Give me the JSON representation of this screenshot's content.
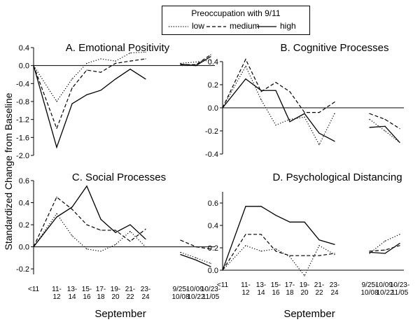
{
  "legend": {
    "title": "Preoccupation with 9/11",
    "items": [
      "low",
      "medium",
      "high"
    ]
  },
  "ylabel": "Standardized Change from Baseline",
  "xlabel": "September",
  "x_categories": [
    "<11",
    "11-\n12",
    "13-\n14",
    "15-\n16",
    "17-\n18",
    "19-\n20",
    "21-\n22",
    "23-\n24",
    "9/25-\n10/08",
    "10/09-\n10/22",
    "10/23-\n11/05"
  ],
  "chart_data": [
    {
      "type": "line",
      "title": "A. Emotional Positivity",
      "ylim": [
        -2.0,
        0.4
      ],
      "yticks": [
        "0.4",
        "0.0",
        "-0.4",
        "-0.8",
        "-1.2",
        "-1.6",
        "-2.0"
      ],
      "ytick_values": [
        0.4,
        0.0,
        -0.4,
        -0.8,
        -1.2,
        -1.6,
        -2.0
      ],
      "series": [
        {
          "name": "low",
          "values": [
            0.0,
            -0.8,
            -0.3,
            0.05,
            0.15,
            0.1,
            0.28,
            0.3,
            0.05,
            0.08,
            0.12
          ]
        },
        {
          "name": "medium",
          "values": [
            0.0,
            -1.4,
            -0.5,
            -0.1,
            -0.15,
            0.05,
            0.1,
            0.15,
            0.02,
            0.02,
            0.24
          ]
        },
        {
          "name": "high",
          "values": [
            0.0,
            -1.82,
            -0.85,
            -0.65,
            -0.55,
            -0.3,
            -0.08,
            -0.3,
            0.03,
            0.0,
            0.2
          ]
        }
      ]
    },
    {
      "type": "line",
      "title": "B. Cognitive Processes",
      "ylim": [
        -0.4,
        0.4
      ],
      "yticks": [
        "0.4",
        "0.2",
        "0.0",
        "-0.2",
        "-0.4"
      ],
      "ytick_values": [
        0.4,
        0.2,
        0.0,
        -0.2,
        -0.4
      ],
      "series": [
        {
          "name": "low",
          "values": [
            0.0,
            0.36,
            0.07,
            -0.15,
            -0.1,
            -0.08,
            -0.32,
            -0.05,
            -0.1,
            -0.2,
            -0.3
          ]
        },
        {
          "name": "medium",
          "values": [
            0.0,
            0.42,
            0.14,
            0.22,
            0.14,
            -0.04,
            -0.04,
            0.05,
            -0.05,
            -0.1,
            -0.18
          ]
        },
        {
          "name": "high",
          "values": [
            0.0,
            0.25,
            0.15,
            0.15,
            -0.12,
            -0.05,
            -0.22,
            -0.29,
            -0.17,
            -0.16,
            -0.3
          ]
        }
      ]
    },
    {
      "type": "line",
      "title": "C. Social Processes",
      "ylim": [
        -0.25,
        0.6
      ],
      "yticks": [
        "0.6",
        "0.4",
        "0.2",
        "0.0",
        "-0.2"
      ],
      "ytick_values": [
        0.6,
        0.4,
        0.2,
        0.0,
        -0.2
      ],
      "series": [
        {
          "name": "low",
          "values": [
            0.0,
            0.3,
            0.1,
            -0.02,
            -0.04,
            0.02,
            0.14,
            0.0,
            -0.05,
            -0.1,
            -0.15
          ]
        },
        {
          "name": "medium",
          "values": [
            0.0,
            0.45,
            0.34,
            0.2,
            0.15,
            0.15,
            0.05,
            0.16,
            0.06,
            0.0,
            -0.02
          ]
        },
        {
          "name": "high",
          "values": [
            0.0,
            0.27,
            0.36,
            0.55,
            0.25,
            0.13,
            0.2,
            0.07,
            -0.07,
            -0.12,
            -0.18
          ]
        }
      ]
    },
    {
      "type": "line",
      "title": "D. Psychological Distancing",
      "ylim": [
        0.0,
        0.7
      ],
      "yticks": [
        "0.6",
        "0.4",
        "0.2",
        "0.0"
      ],
      "ytick_values": [
        0.6,
        0.4,
        0.2,
        0.0
      ],
      "series": [
        {
          "name": "low",
          "values": [
            0.0,
            0.22,
            0.17,
            0.19,
            0.12,
            -0.05,
            0.22,
            0.14,
            0.15,
            0.26,
            0.32
          ]
        },
        {
          "name": "medium",
          "values": [
            0.0,
            0.32,
            0.32,
            0.17,
            0.13,
            0.13,
            0.13,
            0.15,
            0.17,
            0.18,
            0.22
          ]
        },
        {
          "name": "high",
          "values": [
            0.0,
            0.57,
            0.57,
            0.49,
            0.43,
            0.43,
            0.27,
            0.23,
            0.16,
            0.15,
            0.24
          ]
        }
      ]
    }
  ]
}
